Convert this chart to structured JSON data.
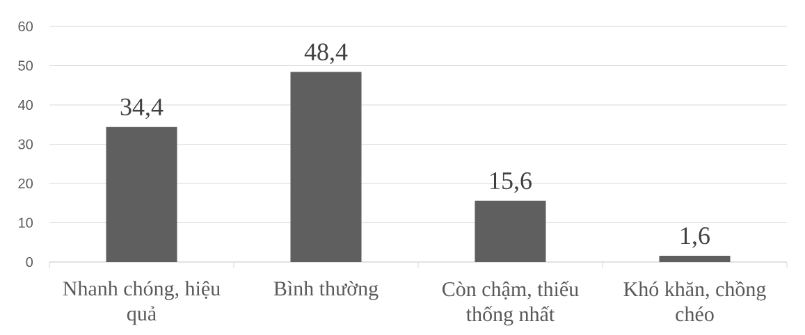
{
  "chart_data": {
    "type": "bar",
    "categories": [
      "Nhanh chóng, hiệu quả",
      "Bình thường",
      "Còn chậm, thiếu thống nhất",
      "Khó khăn, chồng chéo"
    ],
    "values": [
      34.4,
      48.4,
      15.6,
      1.6
    ],
    "value_labels": [
      "34,4",
      "48,4",
      "15,6",
      "1,6"
    ],
    "color": "#5f5f5f",
    "ylim": [
      0,
      60
    ],
    "yticks": [
      0,
      10,
      20,
      30,
      40,
      50,
      60
    ],
    "grid": "y"
  }
}
